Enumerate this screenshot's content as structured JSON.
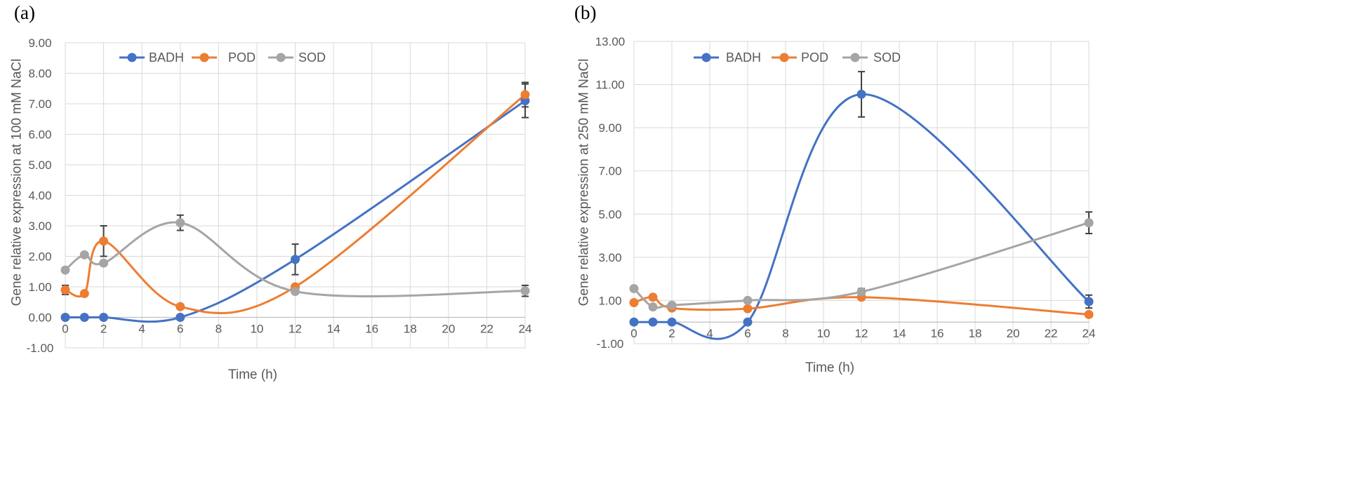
{
  "colors": {
    "BADH": "#4472c4",
    "POD": "#ed7d31",
    "SOD": "#a5a5a5"
  },
  "chart_data": [
    {
      "panel": "(a)",
      "type": "line",
      "xlabel": "Time (h)",
      "ylabel": "Gene relative expression at 100 mM NaCl",
      "xlim": [
        0,
        24
      ],
      "ylim": [
        -1,
        9
      ],
      "xticks": [
        "0",
        "2",
        "4",
        "6",
        "8",
        "10",
        "12",
        "14",
        "16",
        "18",
        "20",
        "22",
        "24"
      ],
      "yticks": [
        "-1.00",
        "0.00",
        "1.00",
        "2.00",
        "3.00",
        "4.00",
        "5.00",
        "6.00",
        "7.00",
        "8.00",
        "9.00"
      ],
      "legend": [
        "BADH",
        "POD",
        "SOD"
      ],
      "x": [
        0,
        1,
        2,
        6,
        12,
        24
      ],
      "series": [
        {
          "name": "BADH",
          "values": [
            0.0,
            0.0,
            0.0,
            0.0,
            1.9,
            7.1
          ],
          "errors": [
            0,
            0,
            0,
            0,
            0.5,
            0.55
          ]
        },
        {
          "name": "POD",
          "values": [
            0.9,
            0.78,
            2.5,
            0.35,
            1.0,
            7.3
          ],
          "errors": [
            0.15,
            0,
            0.5,
            0,
            0,
            0.4
          ]
        },
        {
          "name": "SOD",
          "values": [
            1.55,
            2.05,
            1.78,
            3.1,
            0.85,
            0.87
          ],
          "errors": [
            0,
            0,
            0,
            0.25,
            0,
            0.18
          ]
        }
      ]
    },
    {
      "panel": "(b)",
      "type": "line",
      "xlabel": "Time (h)",
      "ylabel": "Gene relative expression at 250 mM NaCl",
      "xlim": [
        0,
        24
      ],
      "ylim": [
        -1,
        13
      ],
      "xticks": [
        "0",
        "2",
        "4",
        "6",
        "8",
        "10",
        "12",
        "14",
        "16",
        "18",
        "20",
        "22",
        "24"
      ],
      "yticks": [
        "-1.00",
        "1.00",
        "3.00",
        "5.00",
        "7.00",
        "9.00",
        "11.00",
        "13.00"
      ],
      "legend": [
        "BADH",
        "POD",
        "SOD"
      ],
      "x": [
        0,
        1,
        2,
        6,
        12,
        24
      ],
      "series": [
        {
          "name": "BADH",
          "values": [
            0.0,
            0.0,
            0.0,
            0.0,
            10.55,
            0.95
          ],
          "errors": [
            0,
            0,
            0,
            0,
            1.05,
            0.3
          ]
        },
        {
          "name": "POD",
          "values": [
            0.9,
            1.15,
            0.65,
            0.62,
            1.15,
            0.35
          ],
          "errors": [
            0,
            0,
            0,
            0,
            0,
            0
          ]
        },
        {
          "name": "SOD",
          "values": [
            1.55,
            0.7,
            0.78,
            1.0,
            1.4,
            4.6
          ],
          "errors": [
            0,
            0,
            0,
            0,
            0.15,
            0.5
          ]
        }
      ]
    }
  ]
}
